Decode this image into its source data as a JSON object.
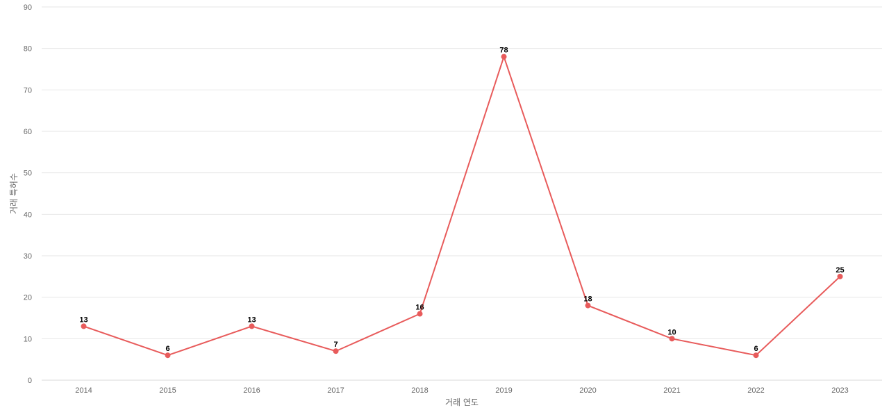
{
  "colors": {
    "series": "#e85b5b",
    "grid": "#e6e6e6",
    "text": "#666666"
  },
  "chart_data": {
    "type": "line",
    "title": "",
    "xlabel": "거래 연도",
    "ylabel": "거래 특허수",
    "x": [
      "2014",
      "2015",
      "2016",
      "2017",
      "2018",
      "2019",
      "2020",
      "2021",
      "2022",
      "2023"
    ],
    "series": [
      {
        "values": [
          13,
          6,
          13,
          7,
          16,
          78,
          18,
          10,
          6,
          25
        ]
      }
    ],
    "ylim": [
      0,
      90
    ],
    "yticks": [
      0,
      10,
      20,
      30,
      40,
      50,
      60,
      70,
      80,
      90
    ],
    "grid": true,
    "legend": "none",
    "data_labels": true
  }
}
